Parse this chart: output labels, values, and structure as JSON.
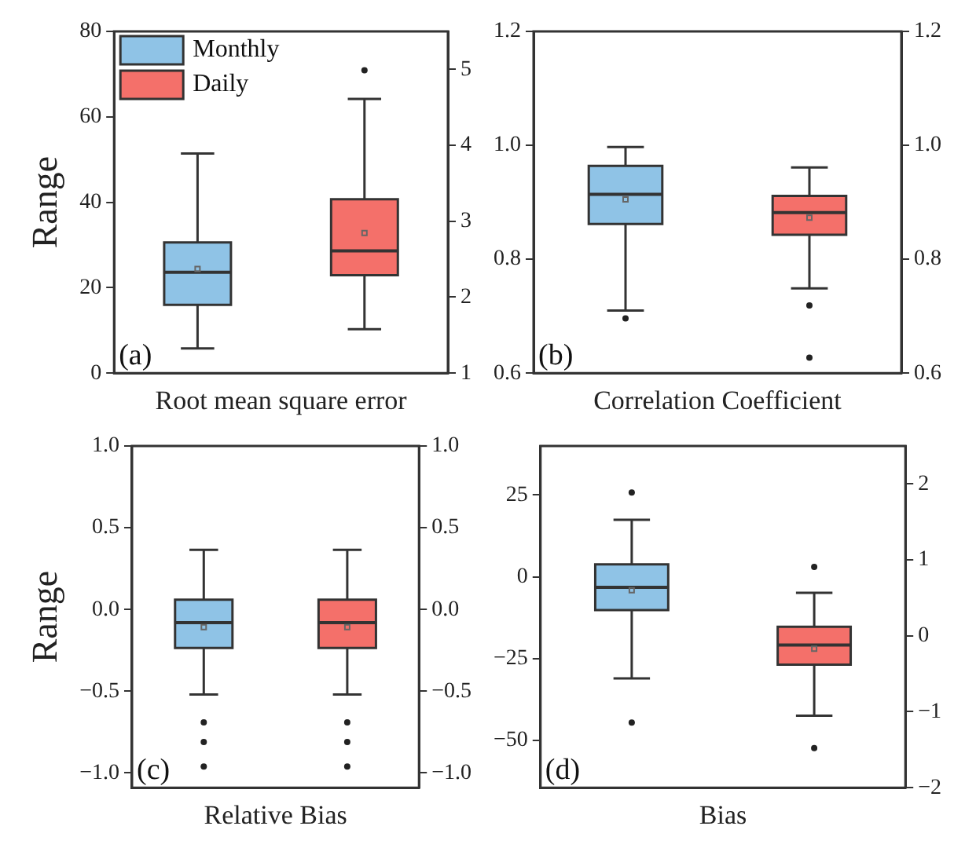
{
  "chart_data": [
    {
      "type": "box",
      "xlabel": "Root mean square error",
      "ylabel": "Range",
      "categories": [
        null
      ],
      "ylim": [
        0,
        80
      ],
      "yticks": [
        0,
        20,
        40,
        60,
        80
      ],
      "y2lim": [
        1,
        5.5
      ],
      "y2ticks": [
        1,
        2,
        3,
        4,
        5
      ],
      "legend": "top left",
      "annotations": [
        "(a)"
      ],
      "series": [
        {
          "name": "Monthly",
          "color": "#8fc3e6",
          "boxes": [
            {
              "low": 5.8,
              "q1": 16,
              "median": 23.6,
              "q3": 30.6,
              "high": 51.4,
              "mean": 24.4
            }
          ]
        },
        {
          "name": "Daily",
          "color": "#f4706a",
          "boxes": [
            {
              "low": 10.3,
              "q1": 22.9,
              "median": 28.6,
              "q3": 40.7,
              "high": 64.2,
              "mean": 32.8,
              "outliers": [
                70.9
              ]
            }
          ]
        }
      ]
    },
    {
      "type": "box",
      "xlabel": "Correlation Coefficient",
      "categories": [
        null
      ],
      "ylim": [
        0.6,
        1.2
      ],
      "yticks": [
        0.6,
        0.8,
        {
          "value": 1,
          "label": "1.0"
        },
        1.2
      ],
      "y2lim": [
        0.6,
        1.2
      ],
      "y2ticks": [
        0.6,
        0.8,
        {
          "value": 1,
          "label": "1.0"
        },
        1.2
      ],
      "annotations": [
        "(b)"
      ],
      "series": [
        {
          "color": "#8fc3e6",
          "boxes": [
            {
              "low": 0.71,
              "q1": 0.862,
              "median": 0.914,
              "q3": 0.964,
              "high": 0.997,
              "mean": 0.905,
              "outliers": [
                0.696
              ]
            }
          ]
        },
        {
          "color": "#f4706a",
          "boxes": [
            {
              "low": 0.749,
              "q1": 0.843,
              "median": 0.882,
              "q3": 0.911,
              "high": 0.961,
              "mean": 0.873,
              "outliers": [
                0.719,
                0.627
              ]
            }
          ]
        }
      ]
    },
    {
      "type": "box",
      "xlabel": "Relative Bias",
      "ylabel": "Range",
      "categories": [
        null
      ],
      "ylim": [
        -1.09,
        1
      ],
      "yticks": [
        {
          "value": -1,
          "label": "−1.0"
        },
        {
          "value": -0.5,
          "label": "−0.5"
        },
        {
          "value": 0,
          "label": "0.0"
        },
        0.5,
        {
          "value": 1,
          "label": "1.0"
        }
      ],
      "y2lim": [
        -1.09,
        1
      ],
      "y2ticks": [
        {
          "value": -1,
          "label": "−1.0"
        },
        {
          "value": -0.5,
          "label": "−0.5"
        },
        {
          "value": 0,
          "label": "0.0"
        },
        0.5,
        {
          "value": 1,
          "label": "1.0"
        }
      ],
      "annotations": [
        "(c)"
      ],
      "series": [
        {
          "color": "#8fc3e6",
          "boxes": [
            {
              "low": -0.52,
              "q1": -0.235,
              "median": -0.08,
              "q3": 0.06,
              "high": 0.365,
              "mean": -0.108,
              "outliers": [
                -0.69,
                -0.81,
                -0.96
              ]
            }
          ]
        },
        {
          "color": "#f4706a",
          "boxes": [
            {
              "low": -0.52,
              "q1": -0.235,
              "median": -0.08,
              "q3": 0.06,
              "high": 0.365,
              "mean": -0.108,
              "outliers": [
                -0.69,
                -0.81,
                -0.96
              ]
            }
          ]
        }
      ]
    },
    {
      "type": "box",
      "xlabel": "Bias",
      "categories": [
        null
      ],
      "ylim": [
        -64.5,
        40
      ],
      "yticks": [
        {
          "value": -50,
          "label": "−50"
        },
        {
          "value": -25,
          "label": "−25"
        },
        0,
        25
      ],
      "y2lim": [
        -2,
        2.5
      ],
      "y2ticks": [
        {
          "value": -2,
          "label": "−2"
        },
        {
          "value": -1,
          "label": "−1"
        },
        0,
        1,
        2
      ],
      "annotations": [
        "(d)"
      ],
      "series": [
        {
          "color": "#8fc3e6",
          "boxes": [
            {
              "low": -31.1,
              "q1": -10.2,
              "median": -3.2,
              "q3": 3.8,
              "high": 17.4,
              "mean": -4.1,
              "outliers": [
                25.8,
                -44.6
              ]
            }
          ]
        },
        {
          "color": "#f4706a",
          "boxes": [
            {
              "low": -42.5,
              "q1": -26.9,
              "median": -20.9,
              "q3": -15.3,
              "high": -4.9,
              "mean": -22,
              "outliers": [
                3,
                -52.4
              ]
            }
          ]
        }
      ]
    }
  ]
}
